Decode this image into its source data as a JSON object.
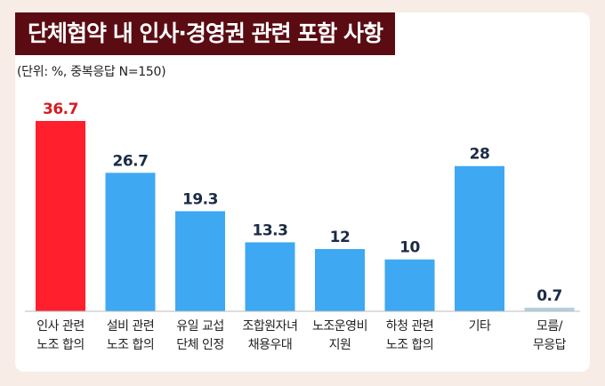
{
  "chart_data": {
    "type": "bar",
    "title": "단체협약 내 인사·경영권 관련 포함 사항",
    "subtitle": "(단위: %, 중복응답 N=150)",
    "categories": [
      [
        "인사 관련",
        "노조 합의"
      ],
      [
        "설비 관련",
        "노조 합의"
      ],
      [
        "유일 교섭",
        "단체 인정"
      ],
      [
        "조합원자녀",
        "채용우대"
      ],
      [
        "노조운영비",
        "지원"
      ],
      [
        "하청 관련",
        "노조 합의"
      ],
      [
        "기타"
      ],
      [
        "모름/",
        "무응답"
      ]
    ],
    "values": [
      36.7,
      26.7,
      19.3,
      13.3,
      12,
      10,
      28,
      0.7
    ],
    "value_labels": [
      "36.7",
      "26.7",
      "19.3",
      "13.3",
      "12",
      "10",
      "28",
      "0.7"
    ],
    "ylim": [
      0,
      40
    ],
    "grid": false,
    "colors": {
      "highlight": "#ff1f2d",
      "default": "#3ea8f2",
      "minor": "#b4d0e0",
      "highlight_label": "#d41c24",
      "default_label": "#1a2b45",
      "title_bg": "#5a0c12",
      "page_bg": "#f7ede6"
    },
    "highlight_index": 0,
    "minor_index": 7
  }
}
